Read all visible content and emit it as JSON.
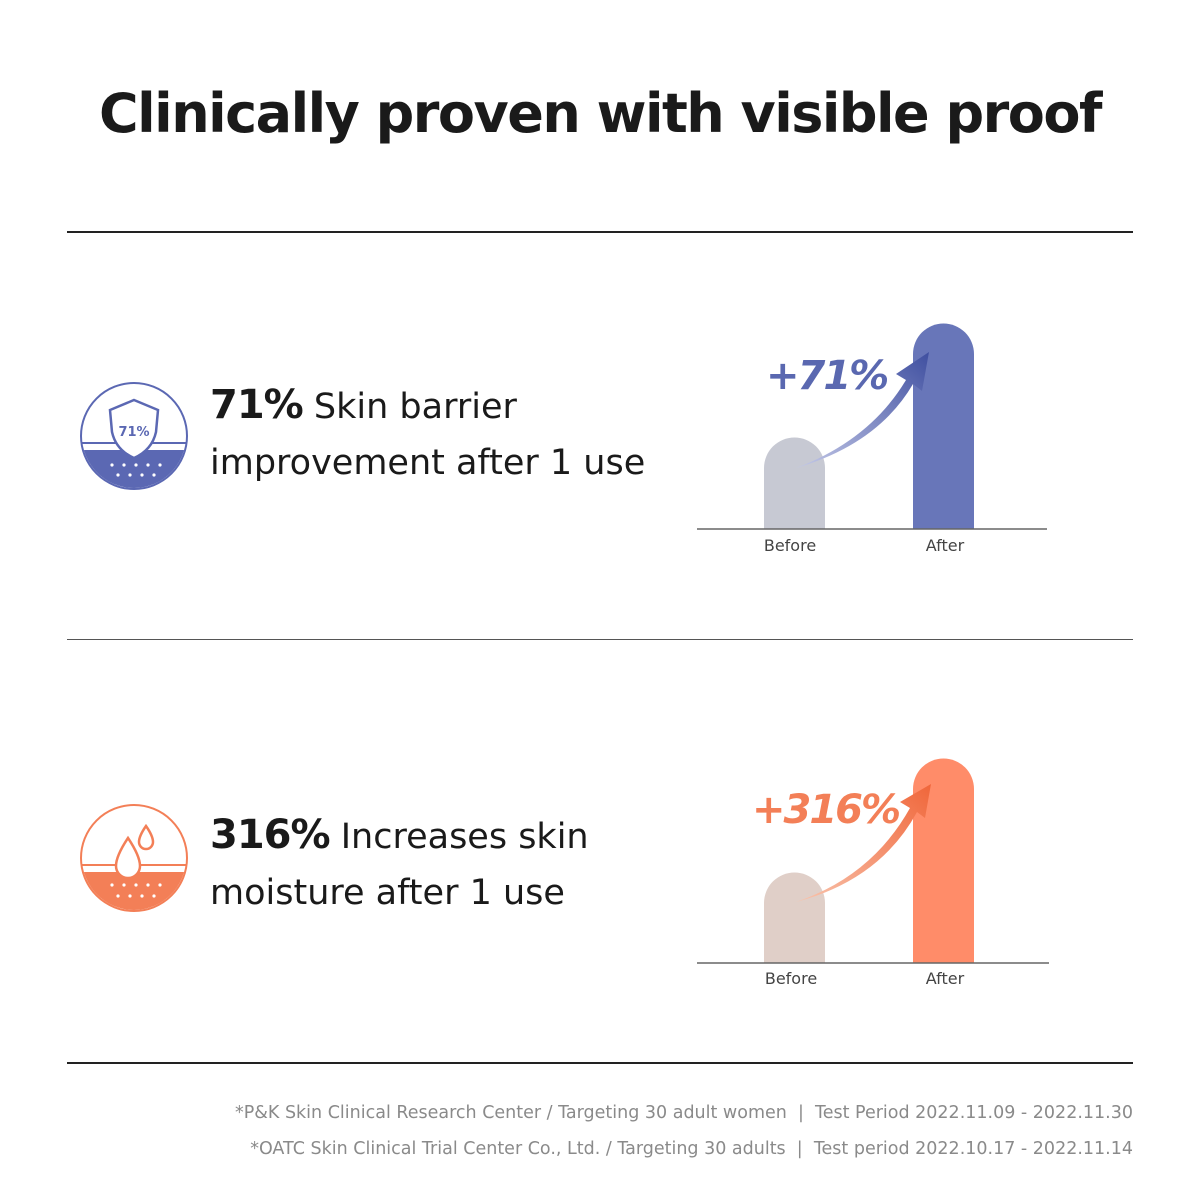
{
  "header": {
    "title": "Clinically proven with visible proof"
  },
  "sections": [
    {
      "stat": "71%",
      "line1": "Skin barrier",
      "line2": "improvement after 1 use",
      "icon_label": "71%",
      "change": "+71%",
      "before_label": "Before",
      "after_label": "After"
    },
    {
      "stat": "316%",
      "line1": "Increases skin",
      "line2": "moisture after 1 use",
      "change": "+316%",
      "before_label": "Before",
      "after_label": "After"
    }
  ],
  "footnotes": [
    "*P&K Skin Clinical Research Center / Targeting 30 adult women  |  Test Period 2022.11.09 - 2022.11.30",
    "*OATC Skin Clinical Trial Center Co., Ltd. / Targeting 30 adults  |  Test period 2022.10.17 - 2022.11.14"
  ]
}
